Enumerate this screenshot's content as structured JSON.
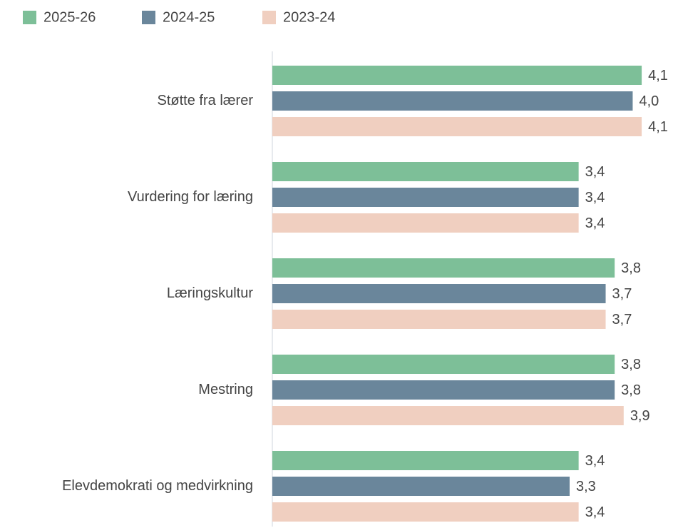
{
  "chart_data": {
    "type": "bar",
    "orientation": "horizontal",
    "categories": [
      "Støtte fra lærer",
      "Vurdering for læring",
      "Læringskultur",
      "Mestring",
      "Elevdemokrati og medvirkning"
    ],
    "series": [
      {
        "name": "2025-26",
        "color": "#7dbf98",
        "values": [
          4.1,
          3.4,
          3.8,
          3.8,
          3.4
        ],
        "value_labels": [
          "4,1",
          "3,4",
          "3,8",
          "3,8",
          "3,4"
        ]
      },
      {
        "name": "2024-25",
        "color": "#6a869b",
        "values": [
          4.0,
          3.4,
          3.7,
          3.8,
          3.3
        ],
        "value_labels": [
          "4,0",
          "3,4",
          "3,7",
          "3,8",
          "3,3"
        ]
      },
      {
        "name": "2023-24",
        "color": "#f0cfc0",
        "values": [
          4.1,
          3.4,
          3.7,
          3.9,
          3.4
        ],
        "value_labels": [
          "4,1",
          "3,4",
          "3,7",
          "3,9",
          "3,4"
        ]
      }
    ],
    "xlim": [
      0,
      4.4
    ],
    "legend": "top-left"
  }
}
